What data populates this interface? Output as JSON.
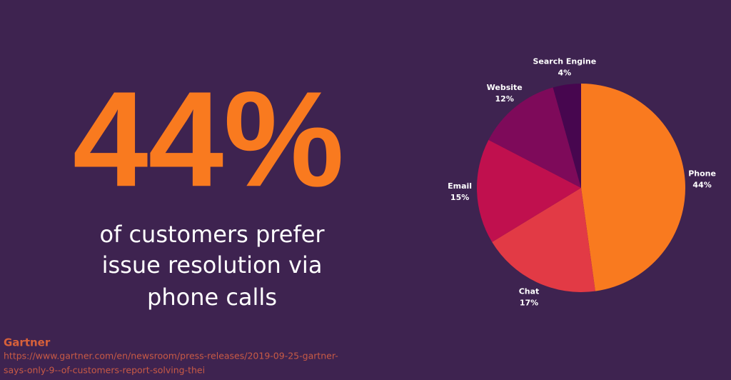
{
  "headline": {
    "stat": "44%",
    "lines": [
      "of customers prefer",
      "issue resolution via",
      "phone calls"
    ]
  },
  "source": {
    "name": "Gartner",
    "url_lines": [
      "https://www.gartner.com/en/newsroom/press-releases/2019-09-25-gartner-",
      "says-only-9--of-customers-report-solving-thei"
    ]
  },
  "chart_data": {
    "type": "pie",
    "categories": [
      "Phone",
      "Chat",
      "Email",
      "Website",
      "Search Engine"
    ],
    "values": [
      44,
      17,
      15,
      12,
      4
    ],
    "value_labels": [
      "44%",
      "17%",
      "15%",
      "12%",
      "4%"
    ],
    "colors": [
      "#f97a1f",
      "#e23a45",
      "#c0104e",
      "#7e0a5a",
      "#47064f"
    ]
  }
}
